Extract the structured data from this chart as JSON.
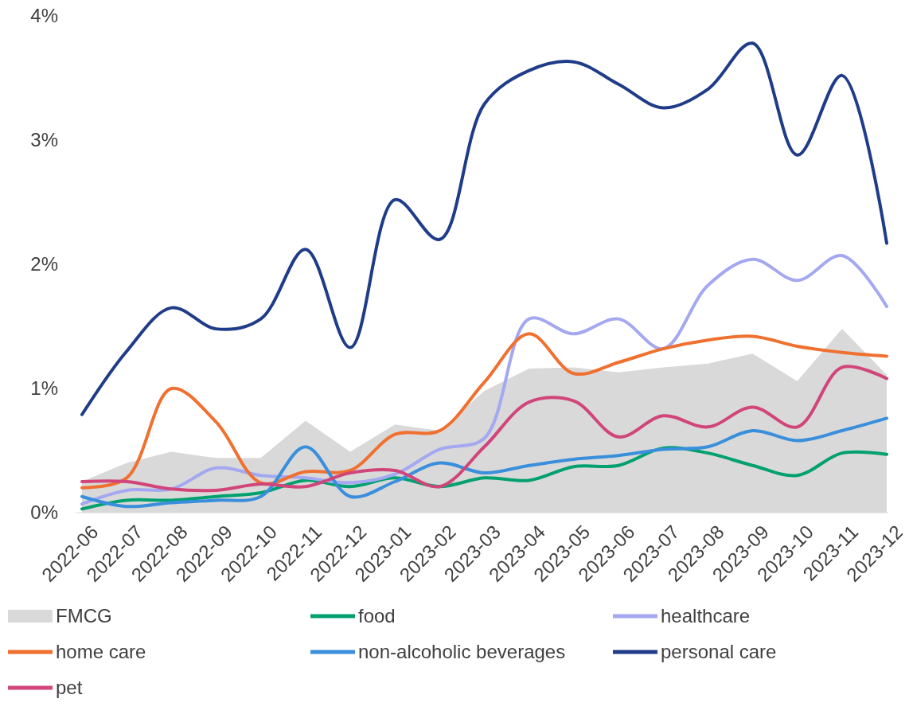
{
  "chart_data": {
    "type": "line",
    "categories": [
      "2022-06",
      "2022-07",
      "2022-08",
      "2022-09",
      "2022-10",
      "2022-11",
      "2022-12",
      "2023-01",
      "2023-02",
      "2023-03",
      "2023-04",
      "2023-05",
      "2023-06",
      "2023-07",
      "2023-08",
      "2023-09",
      "2023-10",
      "2023-11",
      "2023-12"
    ],
    "ylim": [
      0,
      4
    ],
    "yticks": [
      {
        "value": 0,
        "label": "0%"
      },
      {
        "value": 1,
        "label": "1%"
      },
      {
        "value": 2,
        "label": "2%"
      },
      {
        "value": 3,
        "label": "3%"
      },
      {
        "value": 4,
        "label": "4%"
      }
    ],
    "legend": "bottom",
    "grid": false,
    "series": [
      {
        "name": "FMCG",
        "type": "area",
        "color": "#d9d9d9",
        "values": [
          0.25,
          0.4,
          0.49,
          0.44,
          0.44,
          0.74,
          0.49,
          0.71,
          0.66,
          0.98,
          1.16,
          1.17,
          1.13,
          1.17,
          1.2,
          1.28,
          1.06,
          1.48,
          1.11
        ]
      },
      {
        "name": "food",
        "color": "#00a06f",
        "values": [
          0.03,
          0.1,
          0.1,
          0.13,
          0.16,
          0.26,
          0.21,
          0.28,
          0.21,
          0.28,
          0.26,
          0.37,
          0.38,
          0.52,
          0.48,
          0.38,
          0.3,
          0.48,
          0.47
        ]
      },
      {
        "name": "healthcare",
        "color": "#a3a8f0",
        "values": [
          0.07,
          0.18,
          0.19,
          0.36,
          0.3,
          0.28,
          0.24,
          0.31,
          0.51,
          0.6,
          1.56,
          1.44,
          1.56,
          1.32,
          1.83,
          2.04,
          1.87,
          2.07,
          1.66
        ]
      },
      {
        "name": "home care",
        "color": "#f07030",
        "values": [
          0.2,
          0.28,
          1.0,
          0.73,
          0.24,
          0.33,
          0.34,
          0.63,
          0.66,
          1.05,
          1.44,
          1.12,
          1.21,
          1.32,
          1.39,
          1.42,
          1.34,
          1.29,
          1.26
        ]
      },
      {
        "name": "non-alcoholic beverages",
        "color": "#3a8fdc",
        "values": [
          0.13,
          0.05,
          0.08,
          0.1,
          0.13,
          0.53,
          0.13,
          0.25,
          0.4,
          0.32,
          0.38,
          0.43,
          0.46,
          0.51,
          0.53,
          0.66,
          0.58,
          0.66,
          0.76
        ]
      },
      {
        "name": "personal care",
        "color": "#1f3c88",
        "values": [
          0.79,
          1.3,
          1.65,
          1.48,
          1.56,
          2.12,
          1.33,
          2.52,
          2.2,
          3.29,
          3.56,
          3.63,
          3.45,
          3.26,
          3.41,
          3.78,
          2.88,
          3.52,
          2.17
        ]
      },
      {
        "name": "pet",
        "color": "#d1457a",
        "values": [
          0.25,
          0.25,
          0.19,
          0.18,
          0.23,
          0.21,
          0.32,
          0.34,
          0.21,
          0.53,
          0.89,
          0.9,
          0.61,
          0.78,
          0.69,
          0.85,
          0.69,
          1.17,
          1.08
        ]
      }
    ]
  }
}
